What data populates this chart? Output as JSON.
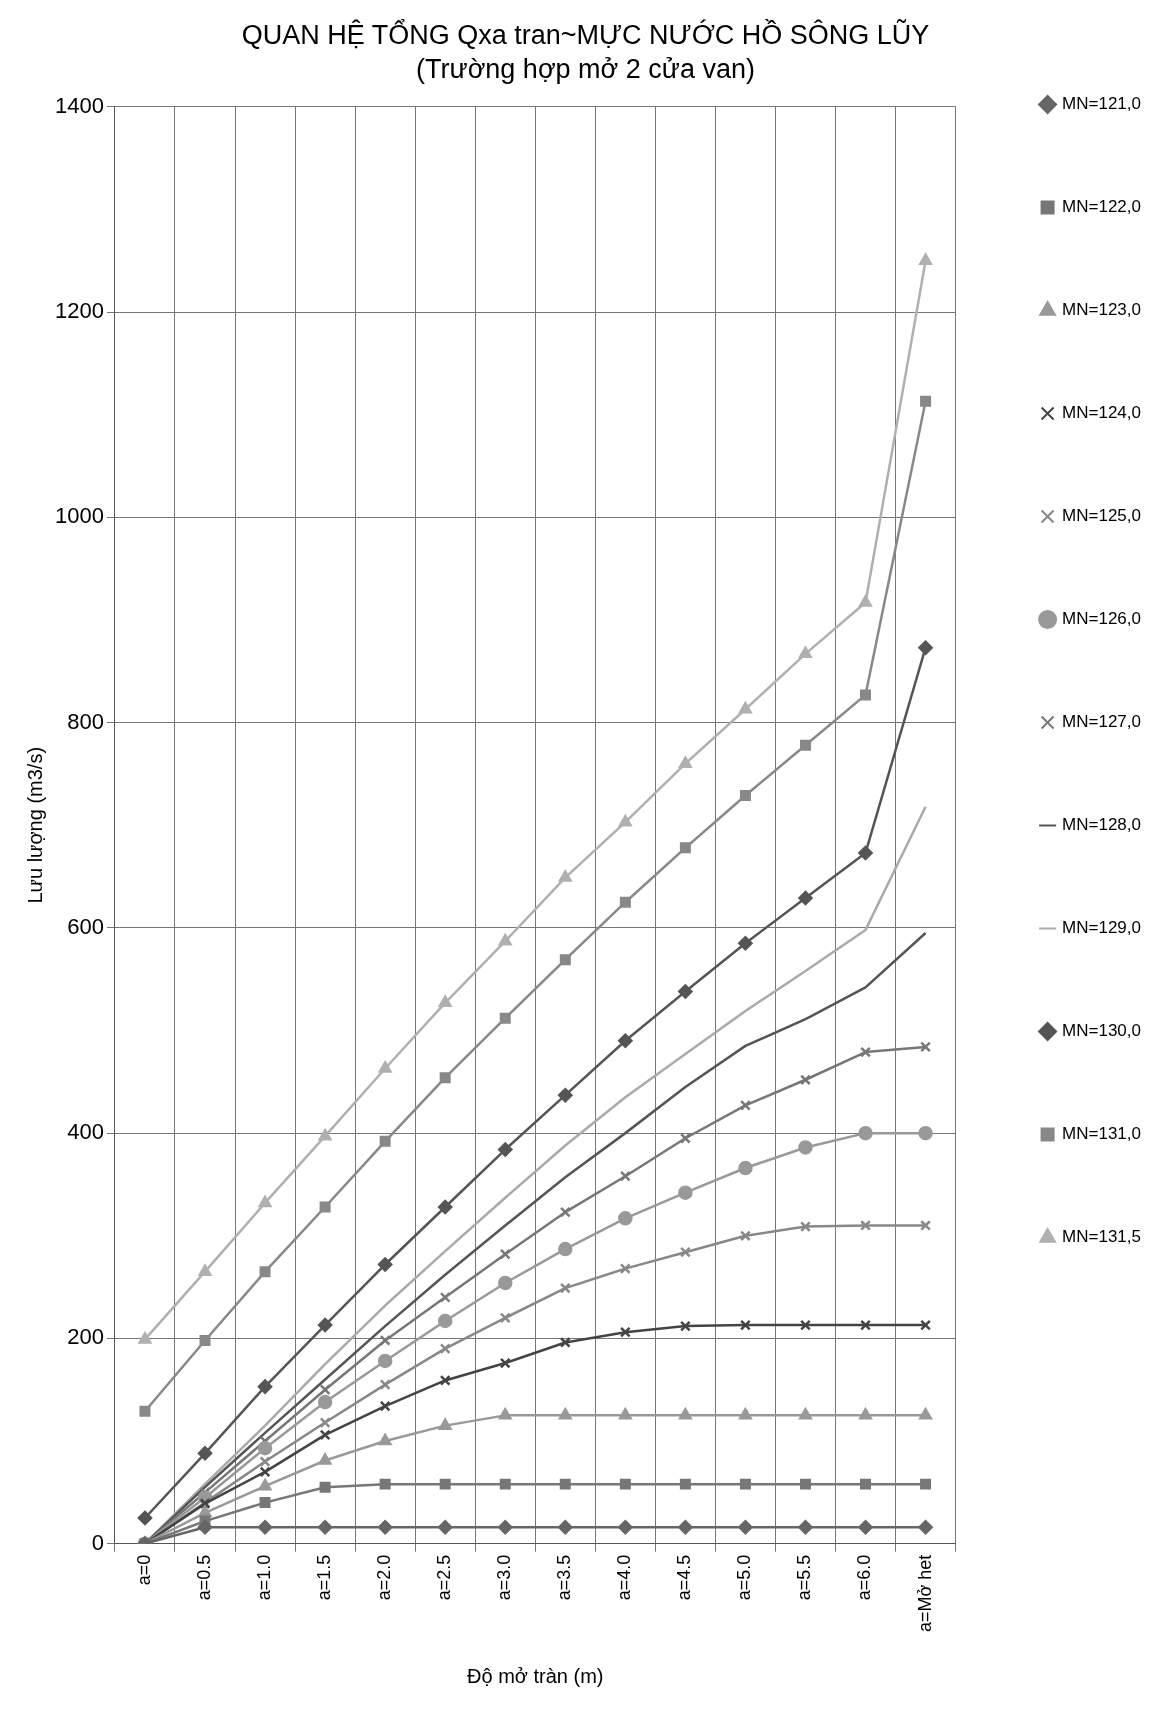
{
  "chart_data": {
    "type": "line",
    "title": "QUAN HỆ TỔNG Qxa tran~MỰC NƯỚC HỒ SÔNG LŨY",
    "subtitle": "(Trường hợp mở 2 cửa van)",
    "xlabel": "Độ mở tràn (m)",
    "ylabel": "Lưu lượng (m3/s)",
    "categories": [
      "a=0",
      "a=0.5",
      "a=1.0",
      "a=1.5",
      "a=2.0",
      "a=2.5",
      "a=3.0",
      "a=3.5",
      "a=4.0",
      "a=4.5",
      "a=5.0",
      "a=5.5",
      "a=6.0",
      "a=Mở het"
    ],
    "ylim": [
      0,
      1400
    ],
    "yticks": [
      0,
      200,
      400,
      600,
      800,
      1000,
      1200,
      1400
    ],
    "grid": true,
    "legend": "right",
    "series": [
      {
        "name": "MN=121,0",
        "color": "#666666",
        "marker": "diamond",
        "values": [
          0,
          16,
          16,
          16,
          16,
          16,
          16,
          16,
          16,
          16,
          16,
          16,
          16,
          16
        ]
      },
      {
        "name": "MN=122,0",
        "color": "#777777",
        "marker": "square",
        "values": [
          0,
          22,
          40,
          55,
          58,
          58,
          58,
          58,
          58,
          58,
          58,
          58,
          58,
          58
        ]
      },
      {
        "name": "MN=123,0",
        "color": "#999999",
        "marker": "triangle",
        "values": [
          0,
          30,
          56,
          81,
          100,
          115,
          125,
          125,
          125,
          125,
          125,
          125,
          125,
          125
        ]
      },
      {
        "name": "MN=124,0",
        "color": "#444444",
        "marker": "cross",
        "values": [
          0,
          39,
          70,
          106,
          134,
          159,
          176,
          196,
          206,
          212,
          213,
          213,
          213,
          213
        ]
      },
      {
        "name": "MN=125,0",
        "color": "#888888",
        "marker": "cross",
        "values": [
          0,
          40,
          80,
          118,
          155,
          190,
          220,
          249,
          268,
          284,
          300,
          309,
          310,
          310
        ]
      },
      {
        "name": "MN=126,0",
        "color": "#999999",
        "marker": "circle",
        "values": [
          0,
          45,
          93,
          138,
          178,
          217,
          254,
          287,
          317,
          342,
          366,
          386,
          400,
          400
        ]
      },
      {
        "name": "MN=127,0",
        "color": "#777777",
        "marker": "cross",
        "values": [
          0,
          50,
          100,
          150,
          198,
          240,
          282,
          323,
          358,
          395,
          427,
          452,
          479,
          484
        ]
      },
      {
        "name": "MN=128,0",
        "color": "#555555",
        "marker": "none",
        "values": [
          0,
          55,
          108,
          160,
          212,
          262,
          310,
          357,
          400,
          445,
          485,
          511,
          542,
          595
        ]
      },
      {
        "name": "MN=129,0",
        "color": "#aaaaaa",
        "marker": "none",
        "values": [
          0,
          58,
          115,
          175,
          232,
          285,
          337,
          388,
          435,
          477,
          519,
          558,
          598,
          718
        ]
      },
      {
        "name": "MN=130,0",
        "color": "#555555",
        "marker": "diamond",
        "values": [
          25,
          88,
          153,
          213,
          272,
          328,
          384,
          437,
          490,
          538,
          585,
          629,
          673,
          873
        ]
      },
      {
        "name": "MN=131,0",
        "color": "#888888",
        "marker": "square",
        "values": [
          129,
          198,
          265,
          328,
          392,
          454,
          512,
          569,
          625,
          678,
          729,
          778,
          827,
          1113
        ]
      },
      {
        "name": "MN=131,5",
        "color": "#b0b0b0",
        "marker": "triangle",
        "values": [
          199,
          265,
          332,
          397,
          463,
          527,
          587,
          649,
          703,
          760,
          813,
          867,
          917,
          1250
        ]
      }
    ]
  }
}
